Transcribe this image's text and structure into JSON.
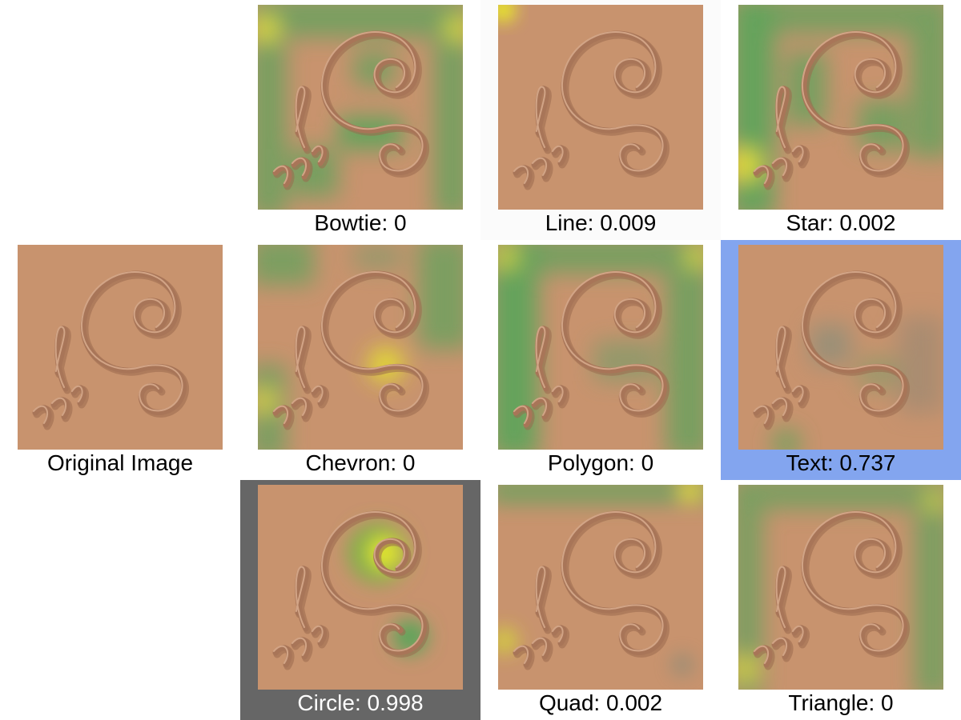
{
  "original": {
    "caption": "Original Image"
  },
  "panels": [
    {
      "label": "Bowtie: 0",
      "shape": "Bowtie",
      "score": 0,
      "highlight": "none"
    },
    {
      "label": "Line: 0.009",
      "shape": "Line",
      "score": 0.009,
      "highlight": "light"
    },
    {
      "label": "Star: 0.002",
      "shape": "Star",
      "score": 0.002,
      "highlight": "none"
    },
    {
      "label": "Chevron: 0",
      "shape": "Chevron",
      "score": 0,
      "highlight": "none"
    },
    {
      "label": "Polygon: 0",
      "shape": "Polygon",
      "score": 0,
      "highlight": "none"
    },
    {
      "label": "Text: 0.737",
      "shape": "Text",
      "score": 0.737,
      "highlight": "blue"
    },
    {
      "label": "Circle: 0.998",
      "shape": "Circle",
      "score": 0.998,
      "highlight": "gray"
    },
    {
      "label": "Quad: 0.002",
      "shape": "Quad",
      "score": 0.002,
      "highlight": "none"
    },
    {
      "label": "Triangle: 0",
      "shape": "Triangle",
      "score": 0,
      "highlight": "none"
    }
  ],
  "colors": {
    "tile_base": "#c8936e",
    "highlight_blue": "#83a5ef",
    "highlight_gray": "#666666",
    "heat_green": "#5aa55a",
    "heat_yellow": "#e8e82a"
  }
}
